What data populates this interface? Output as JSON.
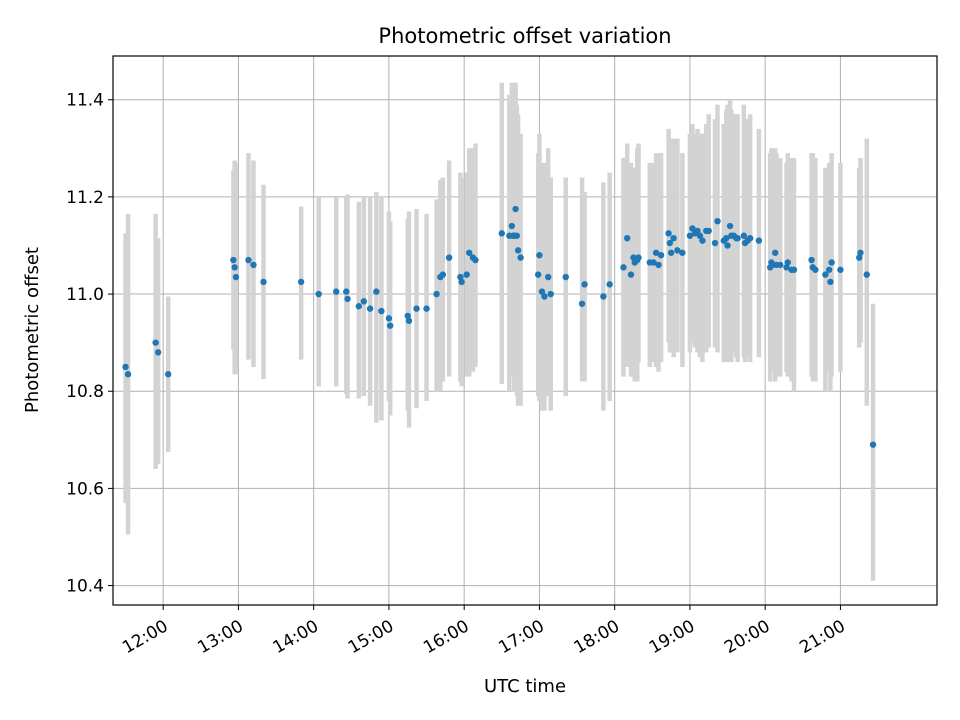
{
  "chart_data": {
    "type": "scatter",
    "title": "Photometric offset variation",
    "xlabel": "UTC time",
    "ylabel": "Photometric offset",
    "x_unit": "hours UTC",
    "xlim": [
      "11:20",
      "22:17"
    ],
    "ylim": [
      10.36,
      11.49
    ],
    "yticks": [
      10.4,
      10.6,
      10.8,
      11.0,
      11.2,
      11.4
    ],
    "ytick_labels": [
      "10.4",
      "10.6",
      "10.8",
      "11.0",
      "11.2",
      "11.4"
    ],
    "xticks": [
      "12:00",
      "13:00",
      "14:00",
      "15:00",
      "16:00",
      "17:00",
      "18:00",
      "19:00",
      "20:00",
      "21:00"
    ],
    "grid": true,
    "colors": {
      "point": "#1f77b4",
      "errorbar": "#d3d3d3",
      "grid": "#b0b0b0"
    },
    "series": [
      {
        "x": [
          "11:30",
          "11:32",
          "11:54",
          "11:56",
          "12:04",
          "12:56",
          "12:57",
          "12:58",
          "13:08",
          "13:12",
          "13:20",
          "13:50",
          "14:04",
          "14:18",
          "14:26",
          "14:27",
          "14:36",
          "14:40",
          "14:45",
          "14:50",
          "14:54",
          "15:00",
          "15:01",
          "15:15",
          "15:16",
          "15:22",
          "15:30",
          "15:38",
          "15:41",
          "15:43",
          "15:48",
          "15:57",
          "15:58",
          "16:02",
          "16:04",
          "16:07",
          "16:09",
          "16:30",
          "16:36",
          "16:38",
          "16:39",
          "16:40",
          "16:41",
          "16:42",
          "16:43",
          "16:45",
          "16:59",
          "17:00",
          "17:02",
          "17:04",
          "17:07",
          "17:09",
          "17:21",
          "17:34",
          "17:36",
          "17:51",
          "17:56",
          "18:07",
          "18:10",
          "18:13",
          "18:15",
          "18:16",
          "18:18",
          "18:19",
          "18:28",
          "18:31",
          "18:33",
          "18:35",
          "18:37",
          "18:43",
          "18:44",
          "18:45",
          "18:47",
          "18:50",
          "18:54",
          "19:00",
          "19:02",
          "19:04",
          "19:06",
          "19:08",
          "19:10",
          "19:13",
          "19:15",
          "19:20",
          "19:22",
          "19:27",
          "19:29",
          "19:30",
          "19:32",
          "19:33",
          "19:35",
          "19:37",
          "19:38",
          "19:43",
          "19:44",
          "19:46",
          "19:48",
          "19:55",
          "20:04",
          "20:05",
          "20:06",
          "20:08",
          "20:09",
          "20:12",
          "20:17",
          "20:18",
          "20:21",
          "20:23",
          "20:37",
          "20:38",
          "20:40",
          "20:48",
          "20:51",
          "20:52",
          "20:53",
          "21:00",
          "21:15",
          "21:16",
          "21:21",
          "21:26"
        ],
        "y": [
          10.85,
          10.835,
          10.9,
          10.88,
          10.835,
          11.07,
          11.055,
          11.035,
          11.07,
          11.06,
          11.025,
          11.025,
          11.0,
          11.005,
          11.005,
          10.99,
          10.975,
          10.985,
          10.97,
          11.005,
          10.965,
          10.95,
          10.935,
          10.955,
          10.945,
          10.97,
          10.97,
          11.0,
          11.035,
          11.04,
          11.075,
          11.035,
          11.025,
          11.04,
          11.085,
          11.075,
          11.07,
          11.125,
          11.12,
          11.14,
          11.12,
          11.12,
          11.175,
          11.12,
          11.09,
          11.075,
          11.04,
          11.08,
          11.005,
          10.995,
          11.035,
          11.0,
          11.035,
          10.98,
          11.02,
          10.995,
          11.02,
          11.055,
          11.115,
          11.04,
          11.075,
          11.065,
          11.07,
          11.075,
          11.065,
          11.065,
          11.085,
          11.06,
          11.08,
          11.125,
          11.105,
          11.085,
          11.115,
          11.09,
          11.085,
          11.12,
          11.135,
          11.125,
          11.13,
          11.12,
          11.11,
          11.13,
          11.13,
          11.105,
          11.15,
          11.11,
          11.115,
          11.1,
          11.14,
          11.12,
          11.12,
          11.115,
          11.115,
          11.12,
          11.105,
          11.11,
          11.115,
          11.11,
          11.055,
          11.065,
          11.06,
          11.085,
          11.06,
          11.06,
          11.055,
          11.065,
          11.05,
          11.05,
          11.07,
          11.055,
          11.05,
          11.04,
          11.05,
          11.025,
          11.065,
          11.05,
          11.075,
          11.085,
          11.04,
          10.69
        ],
        "err_low": [
          10.57,
          10.505,
          10.64,
          10.65,
          10.675,
          10.885,
          10.835,
          10.835,
          10.865,
          10.85,
          10.825,
          10.865,
          10.81,
          10.81,
          10.795,
          10.785,
          10.785,
          10.79,
          10.77,
          10.735,
          10.74,
          10.78,
          10.75,
          10.76,
          10.725,
          10.765,
          10.78,
          10.8,
          10.8,
          10.82,
          10.83,
          10.82,
          10.81,
          10.83,
          10.83,
          10.84,
          10.85,
          10.815,
          10.8,
          10.84,
          10.83,
          10.8,
          10.81,
          10.79,
          10.77,
          10.77,
          10.79,
          10.78,
          10.76,
          10.76,
          10.79,
          10.76,
          10.79,
          10.82,
          10.82,
          10.76,
          10.78,
          10.83,
          10.85,
          10.83,
          10.83,
          10.82,
          10.82,
          10.86,
          10.85,
          10.86,
          10.85,
          10.84,
          10.86,
          10.9,
          10.88,
          10.88,
          10.87,
          10.88,
          10.85,
          10.88,
          10.9,
          10.89,
          10.88,
          10.87,
          10.86,
          10.88,
          10.89,
          10.89,
          10.88,
          10.86,
          10.87,
          10.86,
          10.87,
          10.86,
          10.88,
          10.87,
          10.86,
          10.87,
          10.86,
          10.87,
          10.86,
          10.87,
          10.82,
          10.84,
          10.84,
          10.82,
          10.83,
          10.83,
          10.84,
          10.83,
          10.82,
          10.8,
          10.83,
          10.82,
          10.82,
          10.8,
          10.84,
          10.8,
          10.83,
          10.84,
          10.89,
          10.9,
          10.77,
          10.41
        ],
        "err_high": [
          11.125,
          11.165,
          11.165,
          11.115,
          10.995,
          11.255,
          11.275,
          11.27,
          11.29,
          11.275,
          11.225,
          11.18,
          11.2,
          11.2,
          11.2,
          11.205,
          11.19,
          11.2,
          11.2,
          11.21,
          11.2,
          11.17,
          11.15,
          11.155,
          11.17,
          11.175,
          11.165,
          11.195,
          11.235,
          11.24,
          11.275,
          11.25,
          11.24,
          11.25,
          11.3,
          11.3,
          11.31,
          11.435,
          11.41,
          11.435,
          11.38,
          11.41,
          11.435,
          11.39,
          11.37,
          11.33,
          11.29,
          11.33,
          11.27,
          11.27,
          11.3,
          11.24,
          11.24,
          11.24,
          11.21,
          11.23,
          11.25,
          11.28,
          11.31,
          11.27,
          11.26,
          11.26,
          11.3,
          11.31,
          11.27,
          11.27,
          11.29,
          11.29,
          11.29,
          11.34,
          11.32,
          11.3,
          11.32,
          11.32,
          11.29,
          11.33,
          11.35,
          11.33,
          11.34,
          11.33,
          11.33,
          11.35,
          11.37,
          11.36,
          11.39,
          11.35,
          11.38,
          11.39,
          11.4,
          11.38,
          11.37,
          11.37,
          11.37,
          11.39,
          11.35,
          11.36,
          11.37,
          11.34,
          11.29,
          11.3,
          11.3,
          11.3,
          11.29,
          11.28,
          11.27,
          11.29,
          11.28,
          11.28,
          11.29,
          11.29,
          11.28,
          11.26,
          11.27,
          11.25,
          11.29,
          11.27,
          11.26,
          11.28,
          11.32,
          10.98
        ]
      }
    ]
  }
}
